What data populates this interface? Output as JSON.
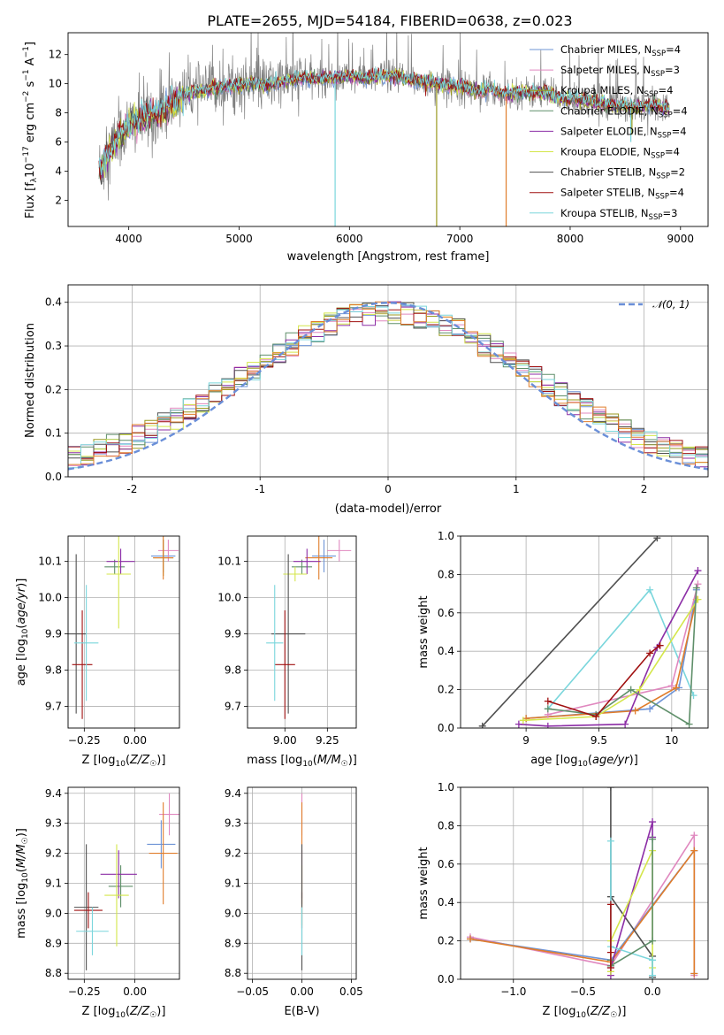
{
  "figure": {
    "title": "PLATE=2655, MJD=54184, FIBERID=0638, z=0.023"
  },
  "colors": {
    "Chabrier MILES": "#6e94d6",
    "Salpeter MILES": "#e088bf",
    "Kroupa MILES": "#9a9a20",
    "Chabrier ELODIE": "#5f8f6a",
    "Salpeter ELODIE": "#8c2ea6",
    "Kroupa ELODIE": "#d4e64a",
    "Chabrier STELIB": "#505050",
    "Salpeter STELIB": "#a01010",
    "Kroupa STELIB": "#7ad6dc",
    "orange": "#e07c2a",
    "grey": "#808080"
  },
  "chart_data": [
    {
      "id": "spectrum",
      "type": "line",
      "title": "PLATE=2655, MJD=54184, FIBERID=0638, z=0.023",
      "xlabel": "wavelength [Angstrom, rest frame]",
      "ylabel": "Flux [f_λ10^-17 erg cm^-2 s^-1 A^-1]",
      "xlim": [
        3450,
        9250
      ],
      "ylim": [
        0.2,
        13.5
      ],
      "xticks": [
        4000,
        5000,
        6000,
        7000,
        8000,
        9000
      ],
      "yticks": [
        2,
        4,
        6,
        8,
        10,
        12
      ],
      "grid": false,
      "legend_position": "top-right",
      "continuum": {
        "x": [
          3730,
          3800,
          3900,
          4000,
          4100,
          4200,
          4300,
          4400,
          4500,
          4600,
          4700,
          4800,
          4900,
          5000,
          5100,
          5200,
          5300,
          5400,
          5500,
          5600,
          5700,
          5800,
          5900,
          6000,
          6100,
          6200,
          6300,
          6400,
          6500,
          6600,
          6700,
          6800,
          6900,
          7000,
          7100,
          7200,
          7300,
          7400,
          7500,
          7600,
          7700,
          7800,
          7900,
          8000,
          8100,
          8200,
          8300,
          8400,
          8500,
          8600,
          8700,
          8800,
          8900
        ],
        "y": [
          4.0,
          5.0,
          6.2,
          7.1,
          7.6,
          7.8,
          8.0,
          8.6,
          9.2,
          9.4,
          9.6,
          9.7,
          9.8,
          9.9,
          10.0,
          9.9,
          10.0,
          10.2,
          10.3,
          10.4,
          10.3,
          10.4,
          10.4,
          10.5,
          10.4,
          10.4,
          10.5,
          10.5,
          10.3,
          10.2,
          10.1,
          10.0,
          9.9,
          9.8,
          9.6,
          9.5,
          9.6,
          9.3,
          9.4,
          9.4,
          9.4,
          9.3,
          9.0,
          8.9,
          8.9,
          8.8,
          8.6,
          8.5,
          8.5,
          8.4,
          8.5,
          8.4,
          8.3
        ]
      },
      "data_noise_amplitude": 2.2,
      "series": [
        {
          "name": "Chabrier MILES, N_SSP=4",
          "ssp": "4"
        },
        {
          "name": "Salpeter MILES, N_SSP=3",
          "ssp": "3"
        },
        {
          "name": "Kroupa MILES, N_SSP=4",
          "ssp": "4"
        },
        {
          "name": "Chabrier ELODIE, N_SSP=4",
          "ssp": "4"
        },
        {
          "name": "Salpeter ELODIE, N_SSP=4",
          "ssp": "4"
        },
        {
          "name": "Kroupa ELODIE, N_SSP=4",
          "ssp": "4"
        },
        {
          "name": "Chabrier STELIB, N_SSP=2",
          "ssp": "2"
        },
        {
          "name": "Salpeter STELIB, N_SSP=4",
          "ssp": "4"
        },
        {
          "name": "Kroupa STELIB, N_SSP=3",
          "ssp": "3"
        }
      ],
      "legend": [
        {
          "label": "Chabrier MILES, N",
          "sub": "SSP",
          "eq": "=4",
          "color": "#6e94d6"
        },
        {
          "label": "Salpeter MILES, N",
          "sub": "SSP",
          "eq": "=3",
          "color": "#e088bf"
        },
        {
          "label": "Kroupa MILES, N",
          "sub": "SSP",
          "eq": "=4",
          "color": "#9a9a20"
        },
        {
          "label": "Chabrier ELODIE, N",
          "sub": "SSP",
          "eq": "=4",
          "color": "#5f8f6a"
        },
        {
          "label": "Salpeter ELODIE, N",
          "sub": "SSP",
          "eq": "=4",
          "color": "#8c2ea6"
        },
        {
          "label": "Kroupa ELODIE, N",
          "sub": "SSP",
          "eq": "=4",
          "color": "#d4e64a"
        },
        {
          "label": "Chabrier STELIB, N",
          "sub": "SSP",
          "eq": "=2",
          "color": "#505050"
        },
        {
          "label": "Salpeter STELIB, N",
          "sub": "SSP",
          "eq": "=4",
          "color": "#a01010"
        },
        {
          "label": "Kroupa STELIB, N",
          "sub": "SSP",
          "eq": "=3",
          "color": "#7ad6dc"
        }
      ],
      "dips": [
        {
          "x": 5870,
          "ymin": 0.2,
          "color": "#7ad6dc"
        },
        {
          "x": 6790,
          "ymin": 0.2,
          "color": "#9a9a20"
        },
        {
          "x": 7420,
          "ymin": 0.2,
          "color": "#e07c2a"
        },
        {
          "x": 8550,
          "ymin": 6.0,
          "color": "#7ad6dc"
        },
        {
          "x": 8560,
          "ymin": 6.5,
          "color": "#9a9a20"
        }
      ]
    },
    {
      "id": "residuals",
      "type": "histogram",
      "xlabel": "(data-model)/error",
      "ylabel": "Normed distribution",
      "xlim": [
        -2.5,
        2.5
      ],
      "ylim": [
        0,
        0.44
      ],
      "xticks": [
        -2,
        -1,
        0,
        1,
        2
      ],
      "yticks": [
        0.0,
        0.1,
        0.2,
        0.3,
        0.4
      ],
      "grid": true,
      "legend_position": "top-right",
      "gaussian": {
        "label": "𝒩(0, 1)",
        "mean": 0,
        "sigma": 1,
        "color": "#6a8fd8"
      },
      "bin_width": 0.1,
      "bin_start": -2.5
    },
    {
      "id": "age-vs-Z",
      "type": "errorbar",
      "xlabel": "Z [log10(Z/Z☉)]",
      "ylabel": "age [log10(age/yr)]",
      "xlim": [
        -0.33,
        0.22
      ],
      "ylim": [
        9.64,
        10.17
      ],
      "xticks": [
        -0.25,
        0.0
      ],
      "xtick_labels": [
        "−0.25",
        "0.00"
      ],
      "yticks": [
        9.7,
        9.8,
        9.9,
        10.0,
        10.1
      ],
      "grid": true,
      "points": [
        {
          "series": "Chabrier MILES",
          "x": 0.14,
          "y": 10.115,
          "xerr": 0.06,
          "yerr": 0.045
        },
        {
          "series": "Salpeter MILES",
          "x": 0.165,
          "y": 10.13,
          "xerr": 0.05,
          "yerr": 0.03
        },
        {
          "series": "Kroupa MILES",
          "x": 0.14,
          "y": 10.11,
          "xerr": 0.05,
          "yerr": 0.05
        },
        {
          "series": "orange",
          "x": 0.14,
          "y": 10.11,
          "xerr": 0.05,
          "yerr": 0.06
        },
        {
          "series": "Chabrier ELODIE",
          "x": -0.1,
          "y": 10.085,
          "xerr": 0.05,
          "yerr": 0.02
        },
        {
          "series": "Salpeter ELODIE",
          "x": -0.07,
          "y": 10.1,
          "xerr": 0.07,
          "yerr": 0.035
        },
        {
          "series": "Kroupa ELODIE",
          "x": -0.08,
          "y": 10.065,
          "xerr": 0.06,
          "yerr": 0.15
        },
        {
          "series": "Chabrier STELIB",
          "x": -0.29,
          "y": 9.9,
          "xerr": 0.05,
          "yerr": 0.22
        },
        {
          "series": "Salpeter STELIB",
          "x": -0.26,
          "y": 9.815,
          "xerr": 0.05,
          "yerr": 0.15
        },
        {
          "series": "Kroupa STELIB",
          "x": -0.24,
          "y": 9.875,
          "xerr": 0.06,
          "yerr": 0.16
        }
      ]
    },
    {
      "id": "age-vs-mass",
      "type": "errorbar",
      "xlabel": "mass [log10(M/M☉)]",
      "ylabel": "",
      "xlim": [
        8.78,
        9.42
      ],
      "ylim": [
        9.64,
        10.17
      ],
      "xticks": [
        9.0,
        9.25
      ],
      "xtick_labels": [
        "9.00",
        "9.25"
      ],
      "yticks": [
        9.7,
        9.8,
        9.9,
        10.0,
        10.1
      ],
      "grid": true,
      "points": [
        {
          "series": "Chabrier MILES",
          "x": 9.23,
          "y": 10.115,
          "xerr": 0.07,
          "yerr": 0.045
        },
        {
          "series": "Salpeter MILES",
          "x": 9.32,
          "y": 10.13,
          "xerr": 0.07,
          "yerr": 0.03
        },
        {
          "series": "orange",
          "x": 9.2,
          "y": 10.11,
          "xerr": 0.08,
          "yerr": 0.06
        },
        {
          "series": "Chabrier ELODIE",
          "x": 9.1,
          "y": 10.085,
          "xerr": 0.06,
          "yerr": 0.02
        },
        {
          "series": "Salpeter ELODIE",
          "x": 9.13,
          "y": 10.1,
          "xerr": 0.08,
          "yerr": 0.035
        },
        {
          "series": "Kroupa ELODIE",
          "x": 9.06,
          "y": 10.065,
          "xerr": 0.07,
          "yerr": 0.02
        },
        {
          "series": "Chabrier STELIB",
          "x": 9.02,
          "y": 9.9,
          "xerr": 0.1,
          "yerr": 0.22
        },
        {
          "series": "Salpeter STELIB",
          "x": 9.0,
          "y": 9.815,
          "xerr": 0.06,
          "yerr": 0.15
        },
        {
          "series": "Kroupa STELIB",
          "x": 8.94,
          "y": 9.875,
          "xerr": 0.05,
          "yerr": 0.16
        }
      ]
    },
    {
      "id": "weight-vs-age",
      "type": "line",
      "xlabel": "age [log10(age/yr)]",
      "ylabel": "mass weight",
      "xlim": [
        8.55,
        10.25
      ],
      "ylim": [
        0,
        1.0
      ],
      "xticks": [
        9.0,
        9.5,
        10.0
      ],
      "yticks": [
        0.0,
        0.2,
        0.4,
        0.6,
        0.8,
        1.0
      ],
      "grid": true,
      "series": [
        {
          "name": "Chabrier STELIB",
          "x": [
            8.7,
            9.9
          ],
          "y": [
            0.01,
            0.99
          ]
        },
        {
          "name": "Kroupa STELIB",
          "x": [
            9.15,
            9.85,
            10.15
          ],
          "y": [
            0.1,
            0.72,
            0.17
          ]
        },
        {
          "name": "Chabrier MILES",
          "x": [
            9.0,
            9.85,
            10.05,
            10.17
          ],
          "y": [
            0.05,
            0.1,
            0.21,
            0.72
          ]
        },
        {
          "name": "orange",
          "x": [
            9.0,
            9.75,
            10.03,
            10.17
          ],
          "y": [
            0.05,
            0.09,
            0.21,
            0.67
          ]
        },
        {
          "name": "Salpeter MILES",
          "x": [
            9.15,
            10.0,
            10.18
          ],
          "y": [
            0.07,
            0.22,
            0.75
          ]
        },
        {
          "name": "Salpeter ELODIE",
          "x": [
            8.95,
            9.15,
            9.68,
            9.9,
            10.18
          ],
          "y": [
            0.02,
            0.01,
            0.02,
            0.42,
            0.82
          ]
        },
        {
          "name": "Kroupa ELODIE",
          "x": [
            8.98,
            9.48,
            9.78,
            10.18
          ],
          "y": [
            0.04,
            0.06,
            0.2,
            0.67
          ]
        },
        {
          "name": "Chabrier ELODIE",
          "x": [
            9.15,
            9.48,
            9.72,
            10.12,
            10.17
          ],
          "y": [
            0.1,
            0.07,
            0.2,
            0.02,
            0.73
          ]
        },
        {
          "name": "Salpeter STELIB",
          "x": [
            9.15,
            9.48,
            9.85,
            9.92
          ],
          "y": [
            0.14,
            0.06,
            0.39,
            0.43
          ]
        }
      ]
    },
    {
      "id": "mass-vs-Z",
      "type": "errorbar",
      "xlabel": "Z [log10(Z/Z☉)]",
      "ylabel": "mass [log10(M/M☉)]",
      "xlim": [
        -0.33,
        0.22
      ],
      "ylim": [
        8.78,
        9.42
      ],
      "xticks": [
        -0.25,
        0.0
      ],
      "xtick_labels": [
        "−0.25",
        "0.00"
      ],
      "yticks": [
        8.8,
        8.9,
        9.0,
        9.1,
        9.2,
        9.3,
        9.4
      ],
      "grid": true,
      "points": [
        {
          "series": "Chabrier MILES",
          "x": 0.13,
          "y": 9.23,
          "xerr": 0.07,
          "yerr": 0.08
        },
        {
          "series": "Salpeter MILES",
          "x": 0.17,
          "y": 9.33,
          "xerr": 0.05,
          "yerr": 0.07
        },
        {
          "series": "orange",
          "x": 0.14,
          "y": 9.2,
          "xerr": 0.07,
          "yerr": 0.17
        },
        {
          "series": "Chabrier ELODIE",
          "x": -0.07,
          "y": 9.09,
          "xerr": 0.06,
          "yerr": 0.07
        },
        {
          "series": "Salpeter ELODIE",
          "x": -0.08,
          "y": 9.13,
          "xerr": 0.09,
          "yerr": 0.08
        },
        {
          "series": "Kroupa ELODIE",
          "x": -0.09,
          "y": 9.06,
          "xerr": 0.06,
          "yerr": 0.17
        },
        {
          "series": "Chabrier STELIB",
          "x": -0.24,
          "y": 9.02,
          "xerr": 0.06,
          "yerr": 0.21
        },
        {
          "series": "Salpeter STELIB",
          "x": -0.23,
          "y": 9.01,
          "xerr": 0.07,
          "yerr": 0.06
        },
        {
          "series": "Kroupa STELIB",
          "x": -0.21,
          "y": 8.94,
          "xerr": 0.08,
          "yerr": 0.08
        }
      ]
    },
    {
      "id": "mass-vs-ebv",
      "type": "errorbar",
      "xlabel": "E(B-V)",
      "ylabel": "",
      "xlim": [
        -0.055,
        0.055
      ],
      "ylim": [
        8.78,
        9.42
      ],
      "xticks": [
        -0.05,
        0.0,
        0.05
      ],
      "xtick_labels": [
        "−0.05",
        "0.00",
        "0.05"
      ],
      "yticks": [
        8.8,
        8.9,
        9.0,
        9.1,
        9.2,
        9.3,
        9.4
      ],
      "grid": true,
      "points": [
        {
          "series": "Salpeter MILES",
          "x": 0.0,
          "y": 9.33,
          "xerr": 0,
          "yerr": 0.07
        },
        {
          "series": "orange",
          "x": 0.0,
          "y": 9.2,
          "xerr": 0,
          "yerr": 0.17
        },
        {
          "series": "Salpeter ELODIE",
          "x": 0.0,
          "y": 9.13,
          "xerr": 0,
          "yerr": 0.08
        },
        {
          "series": "Kroupa ELODIE",
          "x": 0.0,
          "y": 9.06,
          "xerr": 0,
          "yerr": 0.1
        },
        {
          "series": "Salpeter STELIB",
          "x": 0.0,
          "y": 9.01,
          "xerr": 0,
          "yerr": 0.06
        },
        {
          "series": "Chabrier STELIB",
          "x": 0.0,
          "y": 9.02,
          "xerr": 0,
          "yerr": 0.21
        },
        {
          "series": "Kroupa STELIB",
          "x": 0.0,
          "y": 8.94,
          "xerr": 0,
          "yerr": 0.08
        }
      ]
    },
    {
      "id": "weight-vs-Z",
      "type": "line",
      "xlabel": "Z [log10(Z/Z☉)]",
      "ylabel": "mass weight",
      "xlim": [
        -1.38,
        0.4
      ],
      "ylim": [
        0,
        1.0
      ],
      "xticks": [
        -1.0,
        -0.5,
        0.0
      ],
      "xtick_labels": [
        "−1.0",
        "−0.5",
        "0.0"
      ],
      "yticks": [
        0.0,
        0.2,
        0.4,
        0.6,
        0.8,
        1.0
      ],
      "grid": true,
      "series": [
        {
          "name": "Salpeter MILES",
          "x": [
            -1.31,
            -0.3,
            0.3,
            0.3
          ],
          "y": [
            0.22,
            0.07,
            0.75,
            0.02
          ]
        },
        {
          "name": "Chabrier MILES",
          "x": [
            -1.31,
            -0.3,
            0.3,
            0.3
          ],
          "y": [
            0.21,
            0.1,
            0.67,
            0.03
          ]
        },
        {
          "name": "orange",
          "x": [
            -1.31,
            -0.3,
            0.3,
            0.3
          ],
          "y": [
            0.21,
            0.09,
            0.67,
            0.03
          ]
        },
        {
          "name": "Chabrier STELIB",
          "x": [
            -0.3,
            -0.3,
            0.0,
            0.0
          ],
          "y": [
            1.0,
            0.43,
            0.12,
            0.01
          ]
        },
        {
          "name": "Salpeter ELODIE",
          "x": [
            -0.3,
            -0.3,
            0.0,
            0.0
          ],
          "y": [
            0.02,
            0.06,
            0.82,
            0.74
          ]
        },
        {
          "name": "Kroupa ELODIE",
          "x": [
            -0.3,
            -0.3,
            0.0,
            0.0
          ],
          "y": [
            0.04,
            0.2,
            0.67,
            0.06
          ]
        },
        {
          "name": "Kroupa STELIB",
          "x": [
            -0.3,
            -0.3,
            0.0,
            0.0
          ],
          "y": [
            0.72,
            0.17,
            0.1,
            0.02
          ]
        },
        {
          "name": "Chabrier ELODIE",
          "x": [
            -0.3,
            -0.3,
            0.0,
            0.0
          ],
          "y": [
            0.1,
            0.07,
            0.2,
            0.73
          ]
        },
        {
          "name": "Salpeter STELIB",
          "x": [
            -0.3,
            -0.3,
            -0.3
          ],
          "y": [
            0.14,
            0.06,
            0.39
          ]
        }
      ]
    }
  ]
}
